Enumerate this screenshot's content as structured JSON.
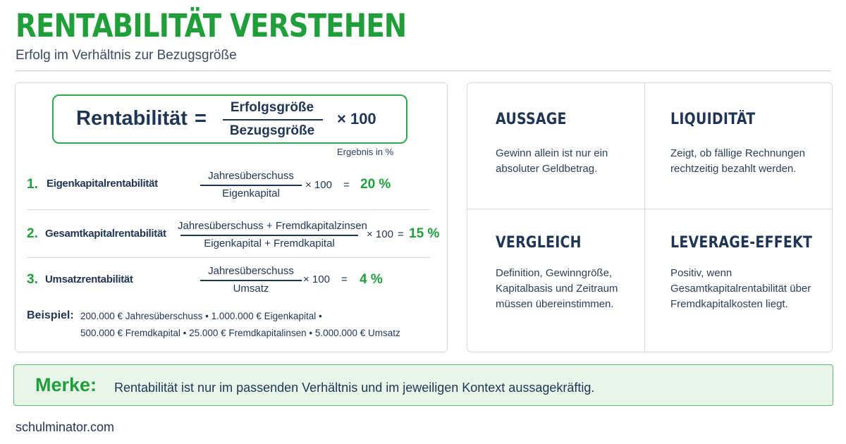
{
  "header": {
    "title": "RENTABILITÄT VERSTEHEN",
    "subtitle": "Erfolg im Verhältnis zur Bezugsgröße"
  },
  "formula": {
    "label": "Rentabilität",
    "equals": "=",
    "numerator": "Erfolgsgröße",
    "denominator": "Bezugsgröße",
    "multiplier": "× 100",
    "note": "Ergebnis in %"
  },
  "rows": [
    {
      "number": "1.",
      "name": "Eigenkapitalrentabilität",
      "numerator": "Jahresüberschuss",
      "denominator": "Eigenkapital",
      "multiplier": "× 100",
      "equals": "=",
      "result": "20 %"
    },
    {
      "number": "2.",
      "name": "Gesamtkapitalrentabilität",
      "numerator": "Jahresüberschuss + Fremdkapitalzinsen",
      "denominator": "Eigenkapital + Fremdkapital",
      "multiplier": "× 100",
      "equals": "=",
      "result": "15 %"
    },
    {
      "number": "3.",
      "name": "Umsatzrentabilität",
      "numerator": "Jahresüberschuss",
      "denominator": "Umsatz",
      "multiplier": "× 100",
      "equals": "=",
      "result": "4 %"
    }
  ],
  "example": {
    "label": "Beispiel:",
    "line1": "200.000 € Jahresüberschuss • 1.000.000 € Eigenkapital •",
    "line2": "500.000 € Fremdkapital • 25.000 € Fremdkapitalinsen • 5.000.000 € Umsatz"
  },
  "cells": [
    {
      "title": "AUSSAGE",
      "text": "Gewinn allein ist nur ein\nabsoluter Geldbetrag."
    },
    {
      "title": "LIQUIDITÄT",
      "text": "Zeigt, ob fällige Rechnungen\nrechtzeitig bezahlt werden."
    },
    {
      "title": "VERGLEICH",
      "text": "Definition, Gewinngröße,\nKapitalbasis und Zeitraum\nmüssen übereinstimmen."
    },
    {
      "title": "LEVERAGE-EFFEKT",
      "text": "Positiv, wenn\nGesamtkapitalrentabilität über\nFremdkapitalkosten liegt."
    }
  ],
  "merke": {
    "label": "Merke:",
    "text": "Rentabilität ist nur im passenden Verhältnis und im jeweiligen Kontext aussagekräftig."
  },
  "footer": {
    "site": "schulminator.com"
  },
  "colors": {
    "accent_green": "#1f9e3a",
    "navy": "#1f3556",
    "merke_background": "#e8f5e9"
  }
}
